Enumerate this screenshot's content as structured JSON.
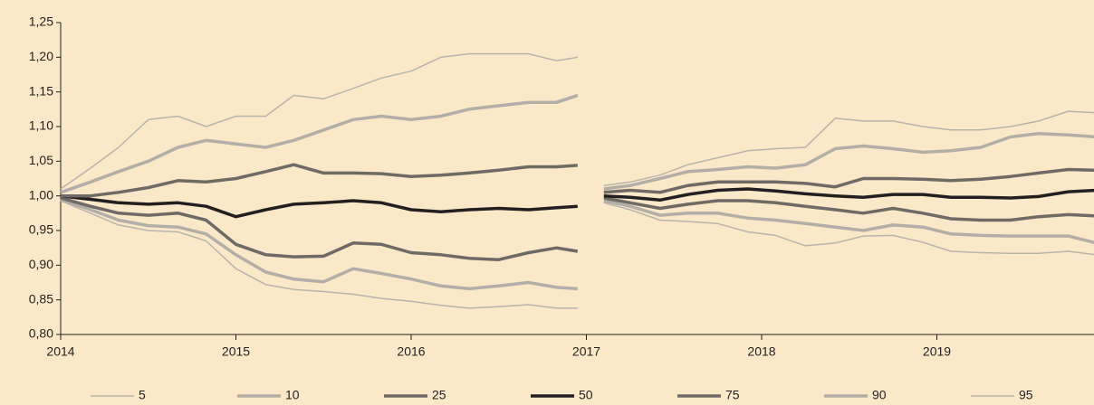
{
  "chart_data": {
    "type": "line",
    "x": [
      2014.0,
      2014.17,
      2014.33,
      2014.5,
      2014.67,
      2014.83,
      2015.0,
      2015.17,
      2015.33,
      2015.5,
      2015.67,
      2015.83,
      2016.0,
      2016.17,
      2016.33,
      2016.5,
      2016.67,
      2016.83,
      2016.95,
      2017.0,
      2017.1,
      2017.25,
      2017.42,
      2017.58,
      2017.75,
      2017.92,
      2018.08,
      2018.25,
      2018.42,
      2018.58,
      2018.75,
      2018.92,
      2019.08,
      2019.25,
      2019.42,
      2019.58,
      2019.75,
      2019.91
    ],
    "series": [
      {
        "name": "5",
        "color": "#b9b3ad",
        "values": [
          0.993,
          0.975,
          0.958,
          0.95,
          0.948,
          0.935,
          0.895,
          0.872,
          0.865,
          0.862,
          0.858,
          0.852,
          0.848,
          0.842,
          0.838,
          0.84,
          0.843,
          0.838,
          0.838,
          null,
          0.99,
          0.98,
          0.965,
          0.963,
          0.96,
          0.948,
          0.943,
          0.928,
          0.932,
          0.942,
          0.943,
          0.933,
          0.92,
          0.918,
          0.917,
          0.917,
          0.92,
          0.915
        ]
      },
      {
        "name": "10",
        "color": "#b4aea8",
        "values": [
          0.995,
          0.98,
          0.965,
          0.957,
          0.955,
          0.945,
          0.915,
          0.89,
          0.88,
          0.876,
          0.895,
          0.888,
          0.88,
          0.87,
          0.866,
          0.87,
          0.875,
          0.868,
          0.866,
          null,
          0.993,
          0.985,
          0.972,
          0.975,
          0.975,
          0.968,
          0.965,
          0.96,
          0.955,
          0.95,
          0.958,
          0.955,
          0.945,
          0.943,
          0.942,
          0.942,
          0.942,
          0.932
        ]
      },
      {
        "name": "25",
        "color": "#6f6a66",
        "values": [
          0.997,
          0.985,
          0.975,
          0.972,
          0.975,
          0.965,
          0.93,
          0.915,
          0.912,
          0.913,
          0.932,
          0.93,
          0.918,
          0.915,
          0.91,
          0.908,
          0.918,
          0.925,
          0.92,
          null,
          0.997,
          0.99,
          0.982,
          0.988,
          0.993,
          0.993,
          0.99,
          0.985,
          0.98,
          0.975,
          0.982,
          0.975,
          0.967,
          0.965,
          0.965,
          0.97,
          0.973,
          0.971
        ]
      },
      {
        "name": "50",
        "color": "#231f20",
        "values": [
          1.0,
          0.995,
          0.99,
          0.988,
          0.99,
          0.985,
          0.97,
          0.98,
          0.988,
          0.99,
          0.993,
          0.99,
          0.98,
          0.977,
          0.98,
          0.982,
          0.98,
          0.983,
          0.985,
          null,
          1.0,
          0.998,
          0.994,
          1.002,
          1.008,
          1.01,
          1.007,
          1.003,
          1.0,
          0.998,
          1.002,
          1.002,
          0.998,
          0.998,
          0.997,
          0.999,
          1.006,
          1.008
        ]
      },
      {
        "name": "75",
        "color": "#6f6a66",
        "values": [
          1.0,
          1.0,
          1.005,
          1.012,
          1.022,
          1.02,
          1.025,
          1.035,
          1.045,
          1.033,
          1.033,
          1.032,
          1.028,
          1.03,
          1.033,
          1.037,
          1.042,
          1.042,
          1.044,
          null,
          1.005,
          1.008,
          1.005,
          1.015,
          1.02,
          1.02,
          1.02,
          1.018,
          1.013,
          1.025,
          1.025,
          1.024,
          1.022,
          1.024,
          1.028,
          1.033,
          1.038,
          1.037
        ]
      },
      {
        "name": "90",
        "color": "#b4aea8",
        "values": [
          1.005,
          1.02,
          1.035,
          1.05,
          1.07,
          1.08,
          1.075,
          1.07,
          1.08,
          1.095,
          1.11,
          1.115,
          1.11,
          1.115,
          1.125,
          1.13,
          1.135,
          1.135,
          1.145,
          null,
          1.01,
          1.015,
          1.025,
          1.035,
          1.038,
          1.042,
          1.04,
          1.045,
          1.068,
          1.072,
          1.068,
          1.063,
          1.065,
          1.07,
          1.085,
          1.09,
          1.088,
          1.085
        ]
      },
      {
        "name": "95",
        "color": "#b9b3ad",
        "values": [
          1.01,
          1.04,
          1.07,
          1.11,
          1.115,
          1.1,
          1.115,
          1.115,
          1.145,
          1.14,
          1.155,
          1.17,
          1.18,
          1.2,
          1.205,
          1.205,
          1.205,
          1.195,
          1.2,
          null,
          1.015,
          1.02,
          1.03,
          1.045,
          1.055,
          1.065,
          1.068,
          1.07,
          1.112,
          1.108,
          1.108,
          1.1,
          1.095,
          1.095,
          1.1,
          1.108,
          1.122,
          1.12
        ]
      }
    ],
    "xlim": [
      2014,
      2019.91
    ],
    "xticks": [
      2014,
      2015,
      2016,
      2017,
      2018,
      2019
    ],
    "ylim": [
      0.8,
      1.25
    ],
    "yticks": [
      {
        "value": 0.8,
        "label": "0,80"
      },
      {
        "value": 0.85,
        "label": "0,85"
      },
      {
        "value": 0.9,
        "label": "0,90"
      },
      {
        "value": 0.95,
        "label": "0,95"
      },
      {
        "value": 1.0,
        "label": "1,00"
      },
      {
        "value": 1.05,
        "label": "1,05"
      },
      {
        "value": 1.1,
        "label": "1,10"
      },
      {
        "value": 1.15,
        "label": "1,15"
      },
      {
        "value": 1.2,
        "label": "1,20"
      },
      {
        "value": 1.25,
        "label": "1,25"
      }
    ],
    "legend": "bottom"
  }
}
